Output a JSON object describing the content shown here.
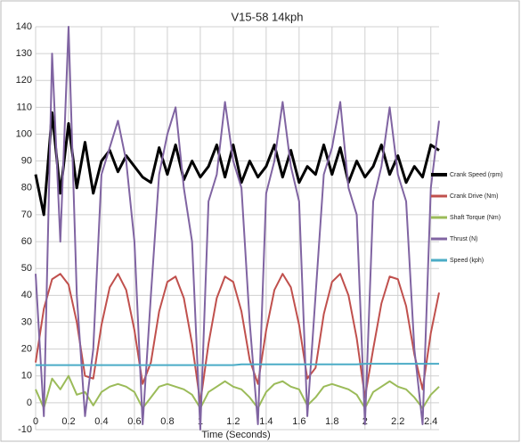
{
  "chart_data": {
    "type": "line",
    "title": "V15-58  14kph",
    "x_label": "Time (Seconds)",
    "x": [
      0,
      0.05,
      0.1,
      0.15,
      0.2,
      0.25,
      0.3,
      0.35,
      0.4,
      0.45,
      0.5,
      0.55,
      0.6,
      0.65,
      0.7,
      0.75,
      0.8,
      0.85,
      0.9,
      0.95,
      1.0,
      1.05,
      1.1,
      1.15,
      1.2,
      1.25,
      1.3,
      1.35,
      1.4,
      1.45,
      1.5,
      1.55,
      1.6,
      1.65,
      1.7,
      1.75,
      1.8,
      1.85,
      1.9,
      1.95,
      2.0,
      2.05,
      2.1,
      2.15,
      2.2,
      2.25,
      2.3,
      2.35,
      2.4,
      2.45
    ],
    "series": [
      {
        "name": "Crank Speed (rpm)",
        "color": "#000000",
        "width": 3,
        "values": [
          85,
          70,
          108,
          78,
          104,
          80,
          97,
          78,
          90,
          94,
          86,
          92,
          88,
          84,
          82,
          95,
          85,
          96,
          83,
          90,
          84,
          88,
          96,
          84,
          96,
          82,
          90,
          84,
          88,
          96,
          84,
          94,
          82,
          88,
          85,
          96,
          85,
          95,
          82,
          90,
          84,
          88,
          96,
          85,
          92,
          82,
          88,
          84,
          96,
          94
        ]
      },
      {
        "name": "Crank Drive (Nm)",
        "color": "#c0504d",
        "width": 2,
        "values": [
          15,
          35,
          46,
          48,
          44,
          30,
          10,
          9,
          29,
          43,
          48,
          42,
          27,
          7,
          15,
          34,
          45,
          47,
          39,
          22,
          0,
          22,
          39,
          47,
          45,
          34,
          16,
          7,
          27,
          42,
          48,
          43,
          29,
          9,
          13,
          33,
          45,
          48,
          40,
          24,
          2,
          20,
          37,
          47,
          46,
          36,
          18,
          5,
          26,
          41
        ]
      },
      {
        "name": "Shaft Torque (Nm)",
        "color": "#9bbb59",
        "width": 2,
        "values": [
          5,
          -2,
          9,
          5,
          10,
          3,
          4,
          -1,
          4,
          6,
          7,
          6,
          4,
          -2,
          2,
          6,
          7,
          6,
          5,
          3,
          -2,
          4,
          6,
          8,
          6,
          5,
          2,
          -2,
          4,
          7,
          8,
          6,
          5,
          -1,
          2,
          6,
          7,
          6,
          5,
          3,
          -2,
          4,
          6,
          8,
          6,
          5,
          2,
          -2,
          3,
          6
        ]
      },
      {
        "name": "Thrust (N)",
        "color": "#8064a2",
        "width": 2,
        "values": [
          48,
          -5,
          130,
          60,
          140,
          40,
          -5,
          20,
          85,
          95,
          105,
          90,
          60,
          -8,
          40,
          85,
          100,
          110,
          80,
          60,
          -10,
          75,
          85,
          112,
          90,
          80,
          30,
          -8,
          78,
          90,
          112,
          88,
          75,
          -5,
          40,
          85,
          95,
          112,
          80,
          70,
          -8,
          75,
          88,
          110,
          85,
          75,
          20,
          -8,
          80,
          105
        ]
      },
      {
        "name": "Speed (kph)",
        "color": "#4bacc6",
        "width": 2,
        "values": [
          14,
          14,
          14,
          14,
          14,
          14,
          14,
          14,
          14,
          14,
          14,
          14,
          14,
          14,
          14,
          14,
          14,
          14,
          14,
          14,
          14,
          14,
          14,
          14,
          14,
          14.3,
          14.3,
          14.3,
          14.3,
          14.3,
          14.3,
          14.3,
          14.3,
          14.3,
          14.3,
          14.3,
          14.3,
          14.3,
          14.3,
          14.3,
          14.5,
          14.5,
          14.5,
          14.5,
          14.5,
          14.5,
          14.5,
          14.5,
          14.5,
          14.5
        ]
      }
    ],
    "xlim": [
      0,
      2.45
    ],
    "ylim": [
      -10,
      140
    ],
    "xticks": [
      0,
      0.2,
      0.4,
      0.6,
      0.8,
      1,
      1.2,
      1.4,
      1.6,
      1.8,
      2,
      2.2,
      2.4
    ],
    "yticks": [
      -10,
      0,
      10,
      20,
      30,
      40,
      50,
      60,
      70,
      80,
      90,
      100,
      110,
      120,
      130,
      140
    ],
    "grid": true,
    "legend": "right"
  }
}
